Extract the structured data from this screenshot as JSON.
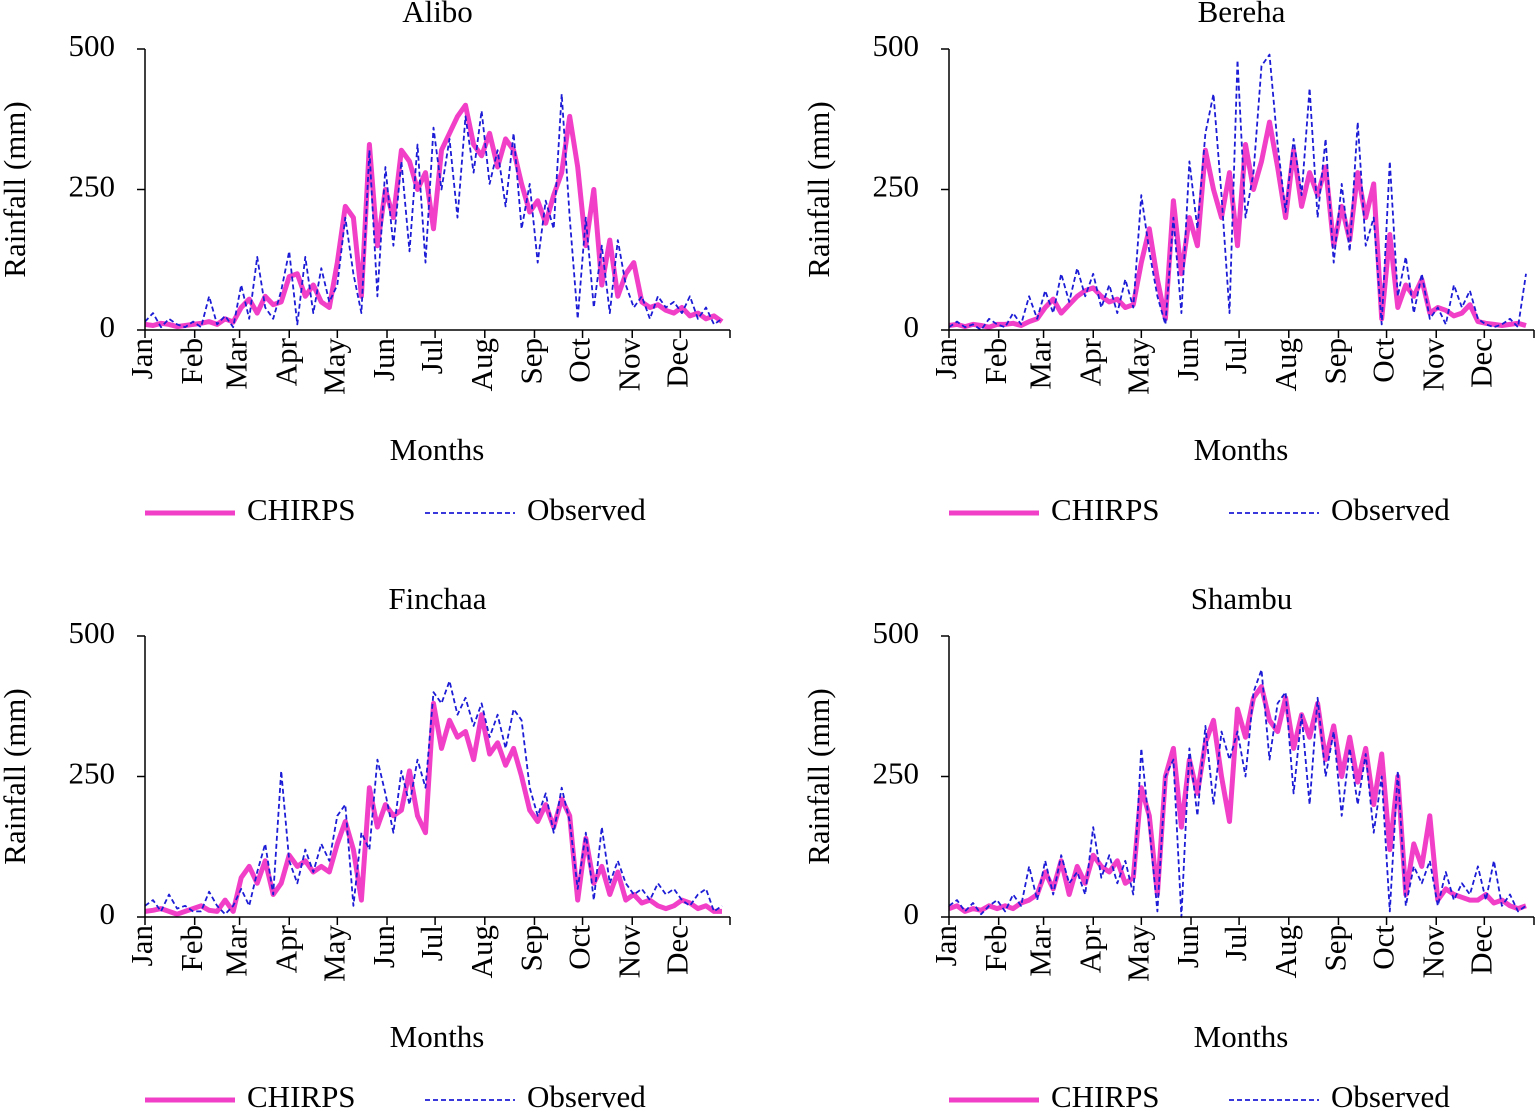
{
  "chart_data": [
    {
      "type": "line",
      "title": "Alibo",
      "xlabel": "Months",
      "ylabel": "Rainfall (mm)",
      "xlim": [
        1,
        366
      ],
      "ylim": [
        0,
        500
      ],
      "yticks": [
        0,
        250,
        500
      ],
      "xticks": [
        {
          "value": 1,
          "label": "Jan"
        },
        {
          "value": 32,
          "label": "Feb"
        },
        {
          "value": 60,
          "label": "Mar"
        },
        {
          "value": 91,
          "label": "Apr"
        },
        {
          "value": 121,
          "label": "May"
        },
        {
          "value": 152,
          "label": "Jun"
        },
        {
          "value": 182,
          "label": "Jul"
        },
        {
          "value": 213,
          "label": "Aug"
        },
        {
          "value": 244,
          "label": "Sep"
        },
        {
          "value": 274,
          "label": "Oct"
        },
        {
          "value": 305,
          "label": "Nov"
        },
        {
          "value": 335,
          "label": "Dec"
        }
      ],
      "x": [
        1,
        6,
        11,
        16,
        21,
        26,
        31,
        36,
        41,
        46,
        51,
        56,
        61,
        66,
        71,
        76,
        81,
        86,
        91,
        96,
        101,
        106,
        111,
        116,
        121,
        126,
        131,
        136,
        141,
        146,
        151,
        156,
        161,
        166,
        171,
        176,
        181,
        186,
        191,
        196,
        201,
        206,
        211,
        216,
        221,
        226,
        231,
        236,
        241,
        246,
        251,
        256,
        261,
        266,
        271,
        276,
        281,
        286,
        291,
        296,
        301,
        306,
        311,
        316,
        321,
        326,
        331,
        336,
        341,
        346,
        351,
        356,
        361
      ],
      "series": [
        {
          "name": "CHIRPS",
          "color": "#f23fc8",
          "values": [
            10,
            8,
            12,
            10,
            6,
            8,
            10,
            12,
            15,
            10,
            20,
            14,
            40,
            55,
            30,
            60,
            45,
            50,
            95,
            100,
            60,
            80,
            50,
            40,
            120,
            220,
            200,
            60,
            330,
            150,
            250,
            200,
            320,
            300,
            250,
            280,
            180,
            320,
            350,
            380,
            400,
            330,
            310,
            350,
            290,
            340,
            320,
            260,
            210,
            230,
            190,
            240,
            280,
            380,
            290,
            150,
            250,
            80,
            160,
            60,
            100,
            120,
            50,
            40,
            45,
            35,
            30,
            40,
            25,
            30,
            20,
            25,
            15
          ]
        },
        {
          "name": "Observed",
          "color": "#1c1cd6",
          "values": [
            15,
            30,
            5,
            20,
            10,
            5,
            15,
            5,
            60,
            10,
            25,
            5,
            80,
            20,
            130,
            40,
            20,
            70,
            140,
            10,
            130,
            30,
            110,
            50,
            80,
            200,
            100,
            30,
            320,
            60,
            290,
            150,
            300,
            140,
            330,
            120,
            360,
            250,
            340,
            200,
            380,
            280,
            390,
            260,
            320,
            220,
            350,
            180,
            260,
            120,
            230,
            180,
            420,
            200,
            20,
            200,
            40,
            150,
            30,
            160,
            80,
            40,
            60,
            20,
            60,
            40,
            50,
            30,
            60,
            20,
            40,
            10,
            20
          ]
        }
      ]
    },
    {
      "type": "line",
      "title": "Bereha",
      "xlabel": "Months",
      "ylabel": "Rainfall (mm)",
      "xlim": [
        1,
        366
      ],
      "ylim": [
        0,
        500
      ],
      "yticks": [
        0,
        250,
        500
      ],
      "xticks": [
        {
          "value": 1,
          "label": "Jan"
        },
        {
          "value": 32,
          "label": "Feb"
        },
        {
          "value": 60,
          "label": "Mar"
        },
        {
          "value": 91,
          "label": "Apr"
        },
        {
          "value": 121,
          "label": "May"
        },
        {
          "value": 152,
          "label": "Jun"
        },
        {
          "value": 182,
          "label": "Jul"
        },
        {
          "value": 213,
          "label": "Aug"
        },
        {
          "value": 244,
          "label": "Sep"
        },
        {
          "value": 274,
          "label": "Oct"
        },
        {
          "value": 305,
          "label": "Nov"
        },
        {
          "value": 335,
          "label": "Dec"
        }
      ],
      "x": [
        1,
        6,
        11,
        16,
        21,
        26,
        31,
        36,
        41,
        46,
        51,
        56,
        61,
        66,
        71,
        76,
        81,
        86,
        91,
        96,
        101,
        106,
        111,
        116,
        121,
        126,
        131,
        136,
        141,
        146,
        151,
        156,
        161,
        166,
        171,
        176,
        181,
        186,
        191,
        196,
        201,
        206,
        211,
        216,
        221,
        226,
        231,
        236,
        241,
        246,
        251,
        256,
        261,
        266,
        271,
        276,
        281,
        286,
        291,
        296,
        301,
        306,
        311,
        316,
        321,
        326,
        331,
        336,
        341,
        346,
        351,
        356,
        361
      ],
      "series": [
        {
          "name": "CHIRPS",
          "color": "#f23fc8",
          "values": [
            8,
            10,
            6,
            10,
            8,
            5,
            10,
            10,
            12,
            8,
            15,
            20,
            40,
            55,
            30,
            45,
            60,
            70,
            75,
            60,
            50,
            55,
            40,
            45,
            120,
            180,
            90,
            20,
            230,
            100,
            200,
            150,
            320,
            250,
            200,
            280,
            150,
            330,
            250,
            300,
            370,
            290,
            200,
            320,
            220,
            280,
            240,
            290,
            150,
            220,
            160,
            280,
            200,
            260,
            20,
            170,
            40,
            80,
            60,
            90,
            30,
            40,
            35,
            25,
            30,
            45,
            15,
            12,
            10,
            8,
            10,
            12,
            8
          ]
        },
        {
          "name": "Observed",
          "color": "#1c1cd6",
          "values": [
            5,
            15,
            5,
            10,
            0,
            20,
            10,
            5,
            30,
            10,
            60,
            20,
            70,
            30,
            100,
            50,
            110,
            60,
            100,
            40,
            80,
            30,
            90,
            40,
            240,
            140,
            60,
            10,
            200,
            30,
            300,
            180,
            350,
            420,
            240,
            30,
            480,
            200,
            280,
            470,
            490,
            330,
            210,
            340,
            240,
            430,
            200,
            340,
            120,
            260,
            140,
            370,
            150,
            200,
            10,
            300,
            60,
            130,
            30,
            100,
            20,
            40,
            10,
            80,
            40,
            70,
            20,
            10,
            5,
            10,
            20,
            5,
            100
          ]
        }
      ]
    },
    {
      "type": "line",
      "title": "Finchaa",
      "xlabel": "Months",
      "ylabel": "Rainfall (mm)",
      "xlim": [
        1,
        366
      ],
      "ylim": [
        0,
        500
      ],
      "yticks": [
        0,
        250,
        500
      ],
      "xticks": [
        {
          "value": 1,
          "label": "Jan"
        },
        {
          "value": 32,
          "label": "Feb"
        },
        {
          "value": 60,
          "label": "Mar"
        },
        {
          "value": 91,
          "label": "Apr"
        },
        {
          "value": 121,
          "label": "May"
        },
        {
          "value": 152,
          "label": "Jun"
        },
        {
          "value": 182,
          "label": "Jul"
        },
        {
          "value": 213,
          "label": "Aug"
        },
        {
          "value": 244,
          "label": "Sep"
        },
        {
          "value": 274,
          "label": "Oct"
        },
        {
          "value": 305,
          "label": "Nov"
        },
        {
          "value": 335,
          "label": "Dec"
        }
      ],
      "x": [
        1,
        6,
        11,
        16,
        21,
        26,
        31,
        36,
        41,
        46,
        51,
        56,
        61,
        66,
        71,
        76,
        81,
        86,
        91,
        96,
        101,
        106,
        111,
        116,
        121,
        126,
        131,
        136,
        141,
        146,
        151,
        156,
        161,
        166,
        171,
        176,
        181,
        186,
        191,
        196,
        201,
        206,
        211,
        216,
        221,
        226,
        231,
        236,
        241,
        246,
        251,
        256,
        261,
        266,
        271,
        276,
        281,
        286,
        291,
        296,
        301,
        306,
        311,
        316,
        321,
        326,
        331,
        336,
        341,
        346,
        351,
        356,
        361
      ],
      "series": [
        {
          "name": "CHIRPS",
          "color": "#f23fc8",
          "values": [
            10,
            12,
            15,
            10,
            5,
            10,
            15,
            20,
            12,
            10,
            30,
            10,
            70,
            90,
            60,
            100,
            40,
            60,
            110,
            90,
            100,
            80,
            90,
            80,
            130,
            170,
            120,
            30,
            230,
            160,
            200,
            180,
            190,
            260,
            180,
            150,
            380,
            300,
            350,
            320,
            330,
            280,
            360,
            290,
            310,
            270,
            300,
            250,
            190,
            170,
            200,
            160,
            210,
            180,
            30,
            140,
            60,
            90,
            40,
            80,
            30,
            40,
            25,
            30,
            20,
            15,
            20,
            30,
            25,
            15,
            20,
            10,
            10
          ]
        },
        {
          "name": "Observed",
          "color": "#1c1cd6",
          "values": [
            20,
            30,
            10,
            40,
            15,
            20,
            10,
            10,
            45,
            20,
            5,
            20,
            50,
            20,
            80,
            130,
            40,
            260,
            100,
            60,
            120,
            80,
            130,
            100,
            180,
            200,
            20,
            150,
            120,
            280,
            220,
            150,
            260,
            200,
            280,
            230,
            400,
            380,
            420,
            360,
            390,
            340,
            380,
            320,
            360,
            300,
            370,
            350,
            230,
            180,
            220,
            150,
            230,
            170,
            50,
            150,
            30,
            160,
            60,
            100,
            60,
            40,
            50,
            30,
            60,
            40,
            50,
            30,
            20,
            40,
            50,
            10,
            20
          ]
        }
      ]
    },
    {
      "type": "line",
      "title": "Shambu",
      "xlabel": "Months",
      "ylabel": "Rainfall (mm)",
      "xlim": [
        1,
        366
      ],
      "ylim": [
        0,
        500
      ],
      "yticks": [
        0,
        250,
        500
      ],
      "xticks": [
        {
          "value": 1,
          "label": "Jan"
        },
        {
          "value": 32,
          "label": "Feb"
        },
        {
          "value": 60,
          "label": "Mar"
        },
        {
          "value": 91,
          "label": "Apr"
        },
        {
          "value": 121,
          "label": "May"
        },
        {
          "value": 152,
          "label": "Jun"
        },
        {
          "value": 182,
          "label": "Jul"
        },
        {
          "value": 213,
          "label": "Aug"
        },
        {
          "value": 244,
          "label": "Sep"
        },
        {
          "value": 274,
          "label": "Oct"
        },
        {
          "value": 305,
          "label": "Nov"
        },
        {
          "value": 335,
          "label": "Dec"
        }
      ],
      "x": [
        1,
        6,
        11,
        16,
        21,
        26,
        31,
        36,
        41,
        46,
        51,
        56,
        61,
        66,
        71,
        76,
        81,
        86,
        91,
        96,
        101,
        106,
        111,
        116,
        121,
        126,
        131,
        136,
        141,
        146,
        151,
        156,
        161,
        166,
        171,
        176,
        181,
        186,
        191,
        196,
        201,
        206,
        211,
        216,
        221,
        226,
        231,
        236,
        241,
        246,
        251,
        256,
        261,
        266,
        271,
        276,
        281,
        286,
        291,
        296,
        301,
        306,
        311,
        316,
        321,
        326,
        331,
        336,
        341,
        346,
        351,
        356,
        361
      ],
      "series": [
        {
          "name": "CHIRPS",
          "color": "#f23fc8",
          "values": [
            15,
            20,
            10,
            15,
            12,
            20,
            15,
            20,
            15,
            25,
            30,
            40,
            80,
            50,
            100,
            40,
            90,
            60,
            110,
            90,
            80,
            100,
            60,
            70,
            230,
            180,
            40,
            250,
            300,
            160,
            280,
            220,
            310,
            350,
            250,
            170,
            370,
            320,
            390,
            410,
            350,
            330,
            390,
            300,
            360,
            320,
            380,
            280,
            340,
            250,
            320,
            240,
            300,
            200,
            290,
            120,
            250,
            40,
            130,
            90,
            180,
            30,
            50,
            40,
            35,
            30,
            30,
            40,
            25,
            30,
            20,
            15,
            20
          ]
        },
        {
          "name": "Observed",
          "color": "#1c1cd6",
          "values": [
            20,
            30,
            10,
            25,
            5,
            20,
            30,
            10,
            40,
            20,
            90,
            30,
            100,
            40,
            110,
            60,
            80,
            40,
            160,
            70,
            110,
            60,
            100,
            40,
            300,
            160,
            10,
            250,
            280,
            0,
            300,
            180,
            340,
            200,
            330,
            280,
            330,
            250,
            400,
            440,
            280,
            380,
            400,
            220,
            360,
            200,
            390,
            250,
            330,
            180,
            300,
            200,
            290,
            150,
            250,
            10,
            260,
            20,
            90,
            60,
            100,
            20,
            80,
            30,
            60,
            40,
            90,
            30,
            100,
            20,
            40,
            10,
            20
          ]
        }
      ]
    }
  ]
}
